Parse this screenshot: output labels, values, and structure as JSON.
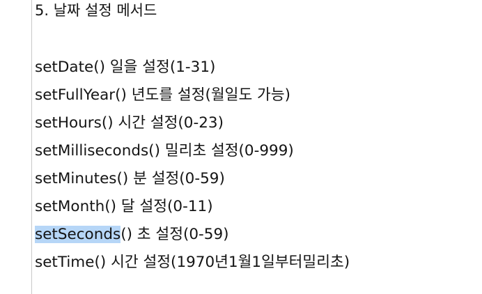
{
  "document": {
    "heading": "5. 날짜 설정 메서드",
    "selection_color": "#b6d6f7",
    "entries": [
      {
        "method": "setDate()",
        "description": " 일을 설정(1-31)"
      },
      {
        "method": "setFullYear()",
        "description": " 년도를 설정(월일도 가능)"
      },
      {
        "method": "setHours()",
        "description": " 시간 설정(0-23)"
      },
      {
        "method": "setMilliseconds()",
        "description": " 밀리초 설정(0-999)"
      },
      {
        "method": "setMinutes()",
        "description": " 분 설정(0-59)"
      },
      {
        "method": "setMonth()",
        "description": " 달 설정(0-11)"
      },
      {
        "method": "setSeconds",
        "method_rest": "()",
        "description": " 초 설정(0-59)",
        "selected": true
      },
      {
        "method": "setTime()",
        "description": " 시간 설정(1970년1월1일부터밀리초)"
      }
    ]
  }
}
